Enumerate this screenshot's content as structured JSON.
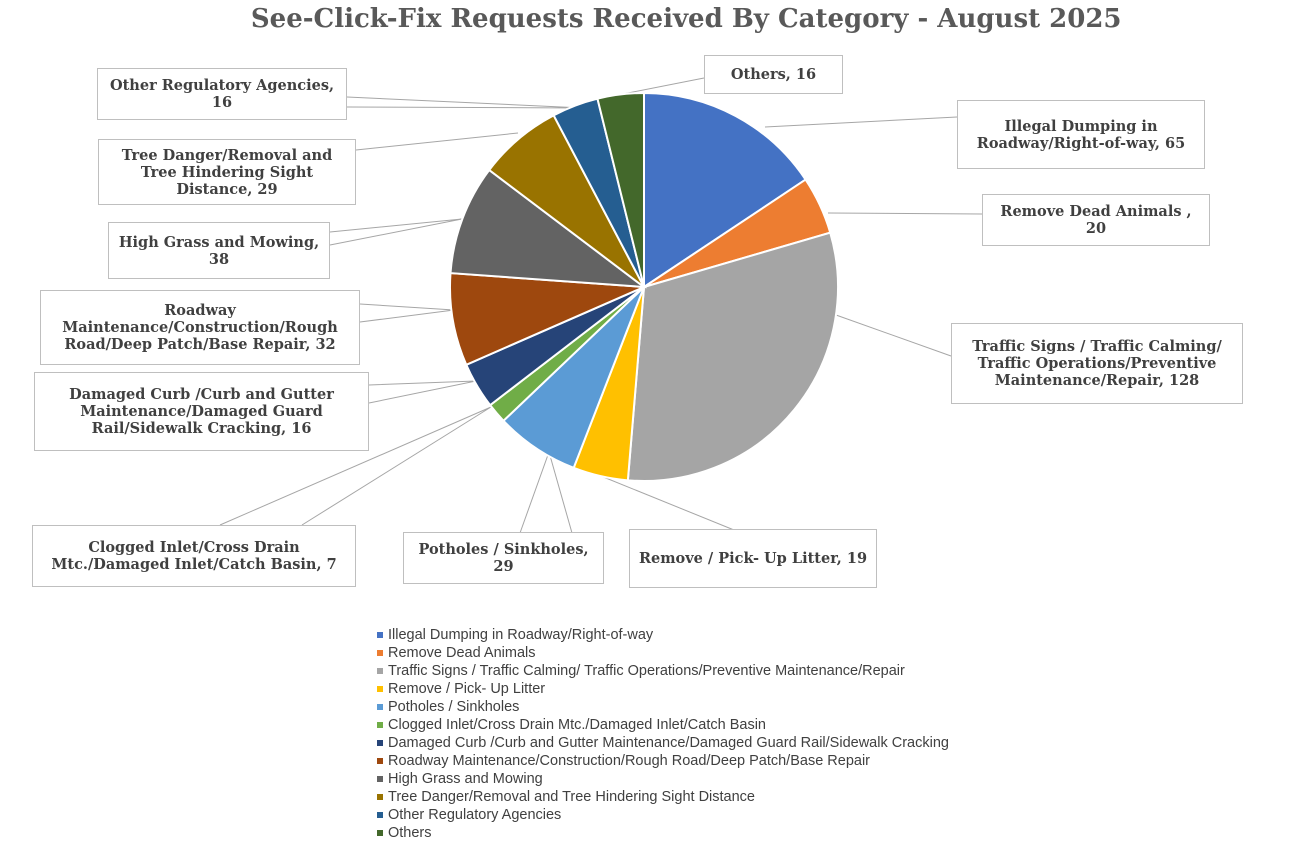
{
  "chart_data": {
    "type": "pie",
    "title": "See-Click-Fix Requests Received By Category - August 2025",
    "legend_position": "bottom",
    "slices": [
      {
        "name": "Illegal Dumping in Roadway/Right-of-way",
        "label": "Illegal Dumping in Roadway/Right-of-way, 65",
        "value": 65,
        "color": "#4472C4"
      },
      {
        "name": "Remove Dead Animals",
        "label": "Remove Dead Animals , 20",
        "value": 20,
        "color": "#ED7D31"
      },
      {
        "name": "Traffic Signs / Traffic Calming/ Traffic Operations/Preventive Maintenance/Repair",
        "label": "Traffic Signs / Traffic Calming/ Traffic Operations/Preventive Maintenance/Repair, 128",
        "value": 128,
        "color": "#A5A5A5"
      },
      {
        "name": "Remove / Pick- Up Litter",
        "label": "Remove / Pick- Up Litter, 19",
        "value": 19,
        "color": "#FFC000"
      },
      {
        "name": "Potholes / Sinkholes",
        "label": "Potholes / Sinkholes, 29",
        "value": 29,
        "color": "#5B9BD5"
      },
      {
        "name": "Clogged Inlet/Cross Drain Mtc./Damaged Inlet/Catch Basin",
        "label": "Clogged Inlet/Cross Drain Mtc./Damaged Inlet/Catch Basin, 7",
        "value": 7,
        "color": "#70AD47"
      },
      {
        "name": "Damaged Curb /Curb and Gutter Maintenance/Damaged Guard Rail/Sidewalk Cracking",
        "label": "Damaged Curb /Curb and Gutter Maintenance/Damaged Guard Rail/Sidewalk Cracking, 16",
        "value": 16,
        "color": "#264478"
      },
      {
        "name": "Roadway Maintenance/Construction/Rough Road/Deep Patch/Base Repair",
        "label": "Roadway Maintenance/Construction/Rough Road/Deep Patch/Base Repair, 32",
        "value": 32,
        "color": "#9E480E"
      },
      {
        "name": "High Grass and Mowing",
        "label": "High Grass and Mowing, 38",
        "value": 38,
        "color": "#636363"
      },
      {
        "name": "Tree Danger/Removal and Tree Hindering Sight Distance",
        "label": "Tree Danger/Removal and Tree Hindering Sight Distance, 29",
        "value": 29,
        "color": "#997300"
      },
      {
        "name": "Other Regulatory Agencies",
        "label": "Other Regulatory Agencies, 16",
        "value": 16,
        "color": "#255E91"
      },
      {
        "name": "Others",
        "label": "Others, 16",
        "value": 16,
        "color": "#43682B"
      }
    ]
  }
}
